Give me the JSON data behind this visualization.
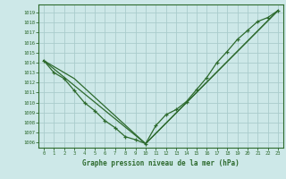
{
  "xlabel": "Graphe pression niveau de la mer (hPa)",
  "bg_color": "#cde8e8",
  "grid_color": "#b0d8d8",
  "line_color": "#2d6a2d",
  "ylim": [
    1005.5,
    1019.8
  ],
  "yticks": [
    1006,
    1007,
    1008,
    1009,
    1010,
    1011,
    1012,
    1013,
    1014,
    1015,
    1016,
    1017,
    1018,
    1019
  ],
  "xlim": [
    -0.5,
    23.5
  ],
  "xticks": [
    0,
    1,
    2,
    3,
    4,
    5,
    6,
    7,
    8,
    9,
    10,
    11,
    12,
    13,
    14,
    15,
    16,
    17,
    18,
    19,
    20,
    21,
    22,
    23
  ],
  "curve1_x": [
    0,
    1,
    2,
    3,
    4,
    5,
    6,
    7,
    8,
    9,
    10,
    11,
    12,
    13,
    14,
    15,
    16,
    17,
    18,
    19,
    20,
    21,
    22,
    23
  ],
  "curve1_y": [
    1014.2,
    1013.0,
    1012.4,
    1011.2,
    1010.0,
    1009.2,
    1008.2,
    1007.5,
    1006.6,
    1006.3,
    1005.9,
    1007.7,
    1008.8,
    1009.3,
    1010.1,
    1011.3,
    1012.5,
    1014.0,
    1015.1,
    1016.3,
    1017.2,
    1018.1,
    1018.5,
    1019.2
  ],
  "curve2_x": [
    0,
    10,
    23
  ],
  "curve2_y": [
    1014.2,
    1005.9,
    1019.2
  ],
  "curve3_x": [
    0,
    3,
    10,
    23
  ],
  "curve3_y": [
    1014.2,
    1012.4,
    1005.9,
    1019.2
  ]
}
